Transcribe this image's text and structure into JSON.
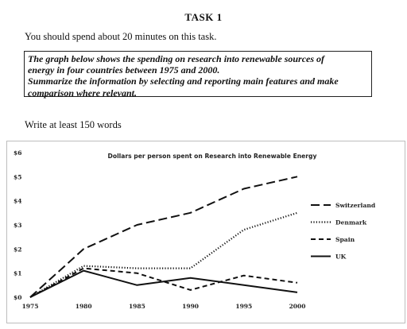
{
  "header": {
    "task": "TASK 1",
    "instruction": "You should spend about 20 minutes on this task."
  },
  "prompt": {
    "lines": [
      "The graph below shows the spending on research into renewable sources of",
      "energy in four countries between 1975 and 2000.",
      "Summarize the information by selecting and reporting main features and make",
      "comparison where relevant."
    ]
  },
  "word_limit": "Write at least 150 words",
  "chart_data": {
    "type": "line",
    "title": "Dollars per person spent on Research into Renewable Energy",
    "xlabel": "",
    "ylabel": "",
    "x": [
      1975,
      1980,
      1985,
      1990,
      1995,
      2000
    ],
    "x_tick_labels": [
      "1975",
      "1980",
      "1985",
      "1990",
      "1995",
      "2000"
    ],
    "ylim": [
      0,
      6
    ],
    "y_ticks": [
      0,
      1,
      2,
      3,
      4,
      5,
      6
    ],
    "y_tick_labels": [
      "$0",
      "$1",
      "$2",
      "$3",
      "$4",
      "$5",
      "$6"
    ],
    "grid": false,
    "legend_position": "right",
    "series": [
      {
        "name": "Switzerland",
        "style": "long-dash",
        "color": "#111111",
        "values": [
          0,
          2.0,
          3.0,
          3.5,
          4.5,
          5.0
        ]
      },
      {
        "name": "Denmark",
        "style": "dotted",
        "color": "#111111",
        "values": [
          0,
          1.3,
          1.2,
          1.2,
          2.8,
          3.5
        ]
      },
      {
        "name": "Spain",
        "style": "dashed",
        "color": "#111111",
        "values": [
          0,
          1.2,
          1.0,
          0.3,
          0.9,
          0.6
        ]
      },
      {
        "name": "UK",
        "style": "solid",
        "color": "#111111",
        "values": [
          0,
          1.1,
          0.5,
          0.8,
          0.5,
          0.2
        ]
      }
    ]
  }
}
